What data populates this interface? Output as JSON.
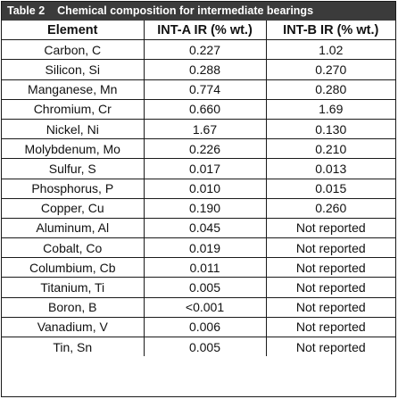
{
  "caption": {
    "number": "Table 2",
    "title": "Chemical composition for intermediate bearings"
  },
  "table": {
    "headers": [
      "Element",
      "INT-A IR (% wt.)",
      "INT-B IR (% wt.)"
    ],
    "rows": [
      [
        "Carbon, C",
        "0.227",
        "1.02"
      ],
      [
        "Silicon, Si",
        "0.288",
        "0.270"
      ],
      [
        "Manganese, Mn",
        "0.774",
        "0.280"
      ],
      [
        "Chromium, Cr",
        "0.660",
        "1.69"
      ],
      [
        "Nickel, Ni",
        "1.67",
        "0.130"
      ],
      [
        "Molybdenum, Mo",
        "0.226",
        "0.210"
      ],
      [
        "Sulfur, S",
        "0.017",
        "0.013"
      ],
      [
        "Phosphorus, P",
        "0.010",
        "0.015"
      ],
      [
        "Copper, Cu",
        "0.190",
        "0.260"
      ],
      [
        "Aluminum, Al",
        "0.045",
        "Not reported"
      ],
      [
        "Cobalt, Co",
        "0.019",
        "Not reported"
      ],
      [
        "Columbium, Cb",
        "0.011",
        "Not reported"
      ],
      [
        "Titanium, Ti",
        "0.005",
        "Not reported"
      ],
      [
        "Boron, B",
        "<0.001",
        "Not reported"
      ],
      [
        "Vanadium, V",
        "0.006",
        "Not reported"
      ],
      [
        "Tin, Sn",
        "0.005",
        "Not reported"
      ]
    ]
  },
  "colors": {
    "caption_bg": "#3b3b3b",
    "caption_text": "#ffffff",
    "border": "#1a1a1a"
  }
}
